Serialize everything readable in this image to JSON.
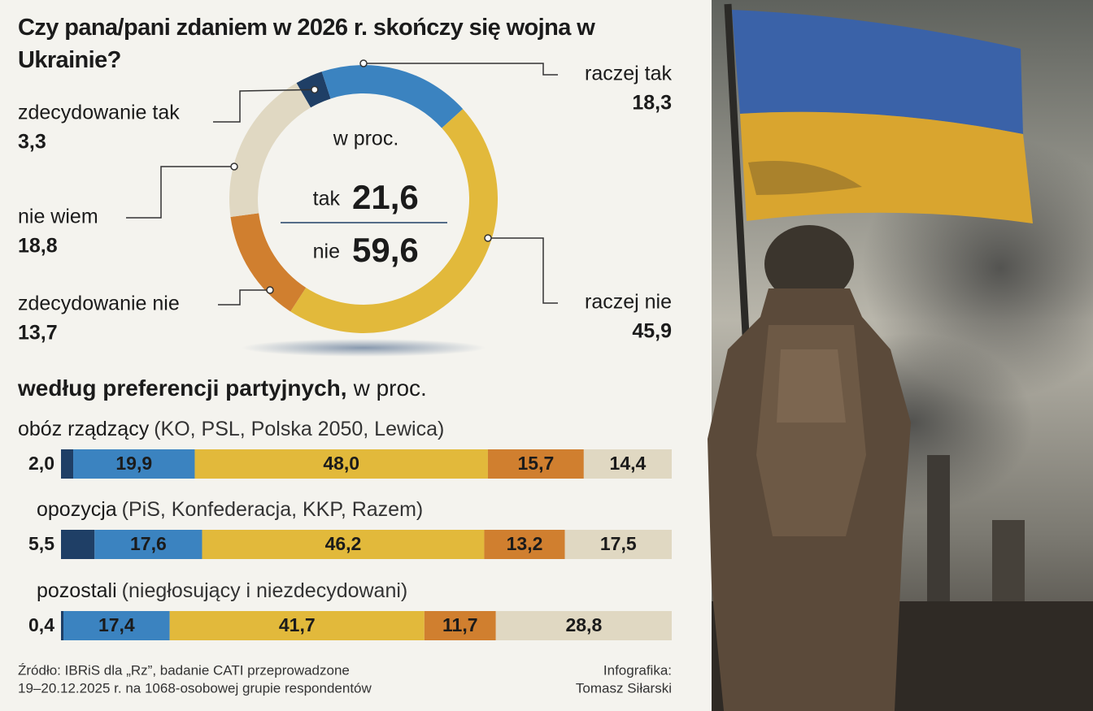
{
  "title": "Czy pana/pani zdaniem w 2026 r. skończy się wojna w Ukrainie?",
  "source": [
    "Źródło: IBRiS dla „Rz”, badanie CATI przeprowadzone",
    "19–20.12.2025 r. na 1068-osobowej grupie respondentów"
  ],
  "credit": [
    "Infografika:",
    "Tomasz Siłarski"
  ],
  "chart_data": [
    {
      "type": "donut",
      "center_label": "w proc.",
      "categories": [
        "zdecydowanie tak",
        "raczej tak",
        "raczej nie",
        "zdecydowanie nie",
        "nie wiem"
      ],
      "values": [
        3.3,
        18.3,
        45.9,
        13.7,
        18.8
      ],
      "value_labels": [
        "3,3",
        "18,3",
        "45,9",
        "13,7",
        "18,8"
      ],
      "colors": [
        "#1f3f66",
        "#3b83c0",
        "#e2b93b",
        "#d07f2f",
        "#e0d8c2"
      ],
      "summary": [
        {
          "name": "tak",
          "value": 21.6,
          "label": "21,6",
          "color": "#1f3f66"
        },
        {
          "name": "nie",
          "value": 59.6,
          "label": "59,6",
          "color": "#d07f2f"
        }
      ]
    },
    {
      "type": "stacked-bar",
      "title": "według preferencji partyjnych,",
      "subtitle": "w proc.",
      "categories": [
        "obóz rządzący",
        "opozycja",
        "pozostali"
      ],
      "category_details": [
        "(KO, PSL, Polska 2050, Lewica)",
        "(PiS, Konfederacja, KKP, Razem)",
        "(niegłosujący i niezdecydowani)"
      ],
      "xlim": [
        0,
        100
      ],
      "series": [
        {
          "color": "#1f3f66",
          "values": [
            2.0,
            5.5,
            0.4
          ],
          "value_labels": [
            "2,0",
            "5,5",
            "0,4"
          ]
        },
        {
          "color": "#3b83c0",
          "values": [
            19.9,
            17.6,
            17.4
          ],
          "value_labels": [
            "19,9",
            "17,6",
            "17,4"
          ]
        },
        {
          "color": "#e2b93b",
          "values": [
            48.0,
            46.2,
            41.7
          ],
          "value_labels": [
            "48,0",
            "46,2",
            "41,7"
          ]
        },
        {
          "color": "#d07f2f",
          "values": [
            15.7,
            13.2,
            11.7
          ],
          "value_labels": [
            "15,7",
            "13,2",
            "11,7"
          ]
        },
        {
          "color": "#e0d8c2",
          "values": [
            14.4,
            17.5,
            28.8
          ],
          "value_labels": [
            "14,4",
            "17,5",
            "28,8"
          ]
        }
      ]
    }
  ]
}
